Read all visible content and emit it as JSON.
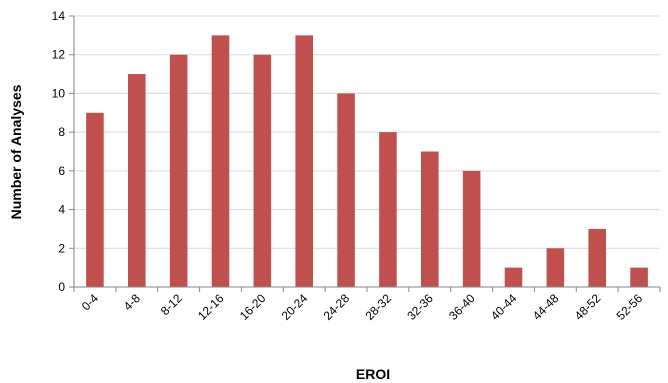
{
  "chart_data": {
    "type": "bar",
    "categories": [
      "0-4",
      "4-8",
      "8-12",
      "12-16",
      "16-20",
      "20-24",
      "24-28",
      "28-32",
      "32-36",
      "36-40",
      "40-44",
      "44-48",
      "48-52",
      "52-56"
    ],
    "values": [
      9,
      11,
      12,
      13,
      12,
      13,
      10,
      8,
      7,
      6,
      1,
      2,
      3,
      1
    ],
    "title": "",
    "xlabel": "EROI",
    "ylabel": "Number of Analyses",
    "ylim": [
      0,
      14
    ],
    "yticks": [
      0,
      2,
      4,
      6,
      8,
      10,
      12,
      14
    ],
    "grid": true,
    "legend": "none",
    "bar_color": "#C0504D",
    "grid_color": "#D9D9D9",
    "axis_color": "#868686"
  }
}
